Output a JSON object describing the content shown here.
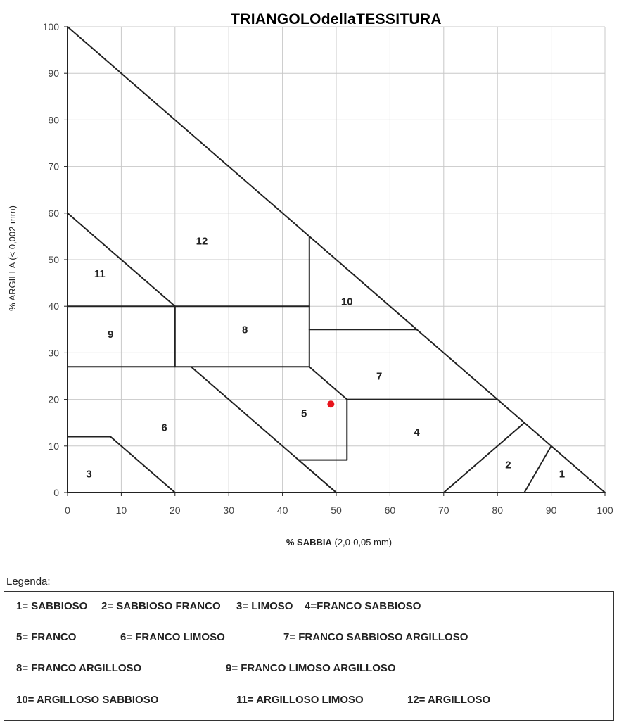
{
  "chart_data": {
    "type": "ternary-texture-triangle",
    "title": "TRIANGOLOdellaTESSITURA",
    "xlabel": "SABBIA",
    "xlabel_prefix": "% ",
    "xlabel_suffix": " (2,0-0,05 mm)",
    "ylabel": "% ARGILLA (< 0,002 mm)",
    "xlim": [
      0,
      100
    ],
    "ylim": [
      0,
      100
    ],
    "x_ticks": [
      0,
      10,
      20,
      30,
      40,
      50,
      60,
      70,
      80,
      90,
      100
    ],
    "y_ticks": [
      0,
      10,
      20,
      30,
      40,
      50,
      60,
      70,
      80,
      90,
      100
    ],
    "grid": true,
    "boundaries": [
      [
        [
          0,
          100
        ],
        [
          100,
          0
        ]
      ],
      [
        [
          0,
          60
        ],
        [
          20,
          40
        ]
      ],
      [
        [
          0,
          40
        ],
        [
          45,
          40
        ]
      ],
      [
        [
          20,
          40
        ],
        [
          20,
          27
        ]
      ],
      [
        [
          0,
          27
        ],
        [
          45,
          27
        ]
      ],
      [
        [
          45,
          55
        ],
        [
          45,
          27
        ]
      ],
      [
        [
          45,
          35
        ],
        [
          65,
          35
        ]
      ],
      [
        [
          45,
          27
        ],
        [
          52,
          20
        ]
      ],
      [
        [
          52,
          20
        ],
        [
          80,
          20
        ]
      ],
      [
        [
          52,
          20
        ],
        [
          52,
          7
        ]
      ],
      [
        [
          52,
          7
        ],
        [
          43,
          7
        ]
      ],
      [
        [
          23,
          27
        ],
        [
          50,
          0
        ]
      ],
      [
        [
          43,
          7
        ],
        [
          50,
          0
        ]
      ],
      [
        [
          0,
          12
        ],
        [
          8,
          12
        ]
      ],
      [
        [
          8,
          12
        ],
        [
          20,
          0
        ]
      ],
      [
        [
          70,
          0
        ],
        [
          85,
          15
        ]
      ],
      [
        [
          85,
          0
        ],
        [
          90,
          10
        ]
      ]
    ],
    "regions": [
      {
        "id": "1",
        "x": 92,
        "y": 4
      },
      {
        "id": "2",
        "x": 82,
        "y": 6
      },
      {
        "id": "3",
        "x": 4,
        "y": 4
      },
      {
        "id": "4",
        "x": 65,
        "y": 13
      },
      {
        "id": "5",
        "x": 44,
        "y": 17
      },
      {
        "id": "6",
        "x": 18,
        "y": 14
      },
      {
        "id": "7",
        "x": 58,
        "y": 25
      },
      {
        "id": "8",
        "x": 33,
        "y": 35
      },
      {
        "id": "9",
        "x": 8,
        "y": 34
      },
      {
        "id": "10",
        "x": 52,
        "y": 41
      },
      {
        "id": "11",
        "x": 6,
        "y": 47
      },
      {
        "id": "12",
        "x": 25,
        "y": 54
      }
    ],
    "marker": {
      "x": 49,
      "y": 19,
      "color": "#e8141c"
    },
    "legend_title": "Legenda:",
    "legend": [
      "1= SABBIOSO",
      "2= SABBIOSO FRANCO",
      "3= LIMOSO",
      "4=FRANCO SABBIOSO",
      "5= FRANCO",
      "6= FRANCO LIMOSO",
      "7= FRANCO SABBIOSO ARGILLOSO",
      "8= FRANCO ARGILLOSO",
      "9= FRANCO LIMOSO ARGILLOSO",
      "10= ARGILLOSO SABBIOSO",
      "11= ARGILLOSO LIMOSO",
      "12= ARGILLOSO"
    ]
  },
  "colors": {
    "lines": "#222222",
    "grid": "#c8c8c8",
    "marker": "#e8141c"
  }
}
